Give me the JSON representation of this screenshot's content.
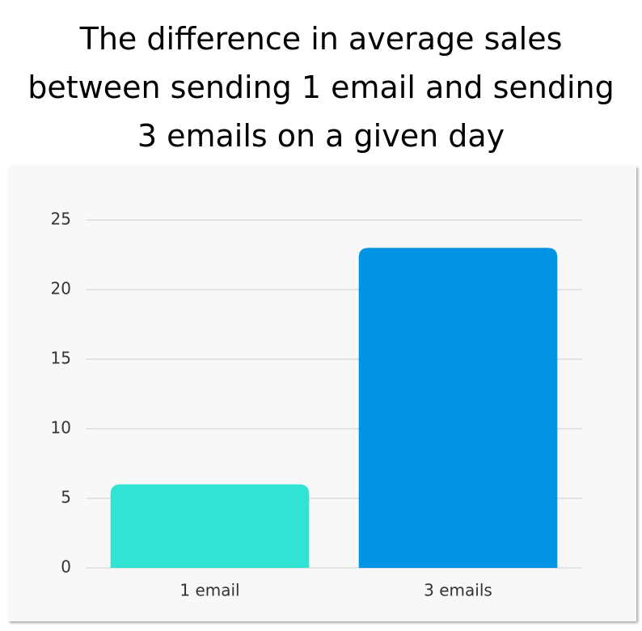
{
  "chart_data": {
    "type": "bar",
    "title": "The difference in average sales between sending 1 email and sending 3 emails on a given day",
    "categories": [
      "1 email",
      "3 emails"
    ],
    "values": [
      6,
      23
    ],
    "colors": [
      "#30e3d3",
      "#0593e6"
    ],
    "ylim": [
      0,
      25
    ],
    "yticks": [
      0,
      5,
      10,
      15,
      20,
      25
    ],
    "grid": true
  }
}
